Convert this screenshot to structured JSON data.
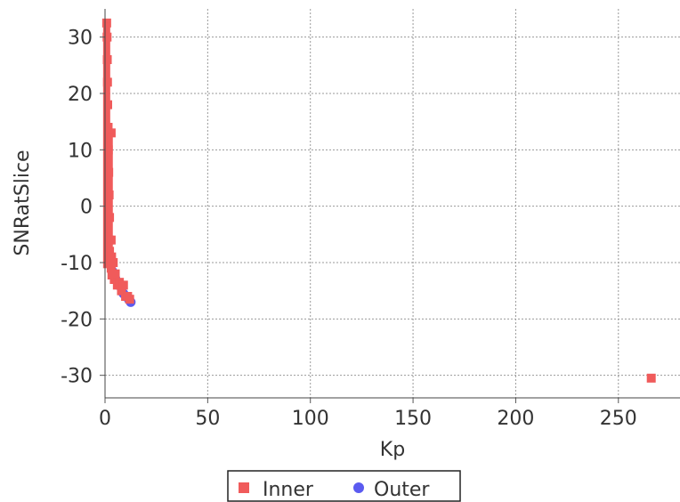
{
  "chart_data": {
    "type": "scatter",
    "title": "",
    "xlabel": "Kp",
    "ylabel": "SNRatSlice",
    "xlim": [
      0,
      280
    ],
    "ylim": [
      -34,
      35
    ],
    "x_ticks": [
      0,
      50,
      100,
      150,
      200,
      250
    ],
    "y_ticks": [
      30,
      20,
      10,
      0,
      -10,
      -20,
      -30
    ],
    "grid": true,
    "legend_position": "bottom",
    "series": [
      {
        "name": "Inner",
        "marker": "square",
        "color": "#f05b5b",
        "points": [
          {
            "x": 0.8,
            "y": 32.5
          },
          {
            "x": 1.0,
            "y": 30
          },
          {
            "x": 1.1,
            "y": 26
          },
          {
            "x": 1.2,
            "y": 22
          },
          {
            "x": 1.3,
            "y": 18
          },
          {
            "x": 1.5,
            "y": 14
          },
          {
            "x": 1.6,
            "y": 10
          },
          {
            "x": 1.8,
            "y": 6
          },
          {
            "x": 2.0,
            "y": 2
          },
          {
            "x": 2.2,
            "y": -2
          },
          {
            "x": 2.0,
            "y": -6
          },
          {
            "x": 2.2,
            "y": -8
          },
          {
            "x": 2.5,
            "y": -10
          },
          {
            "x": 3.0,
            "y": -11
          },
          {
            "x": 3.0,
            "y": 13
          },
          {
            "x": 3.0,
            "y": -6
          },
          {
            "x": 3.2,
            "y": -9
          },
          {
            "x": 3.5,
            "y": -12
          },
          {
            "x": 4.0,
            "y": -10
          },
          {
            "x": 4.5,
            "y": -13
          },
          {
            "x": 5.0,
            "y": -12
          },
          {
            "x": 6.0,
            "y": -14
          },
          {
            "x": 7.0,
            "y": -13.5
          },
          {
            "x": 8.0,
            "y": -15
          },
          {
            "x": 9.0,
            "y": -14
          },
          {
            "x": 10.0,
            "y": -16
          },
          {
            "x": 11.0,
            "y": -16
          },
          {
            "x": 12.0,
            "y": -16.5
          },
          {
            "x": 266.0,
            "y": -30.5
          }
        ]
      },
      {
        "name": "Outer",
        "marker": "circle",
        "color": "#5b5bf0",
        "points": [
          {
            "x": 3.5,
            "y": -11.5
          },
          {
            "x": 5.0,
            "y": -12.8
          },
          {
            "x": 6.5,
            "y": -14
          },
          {
            "x": 9.0,
            "y": -15.5
          },
          {
            "x": 11.5,
            "y": -16.5
          },
          {
            "x": 12.5,
            "y": -17
          }
        ]
      }
    ]
  }
}
